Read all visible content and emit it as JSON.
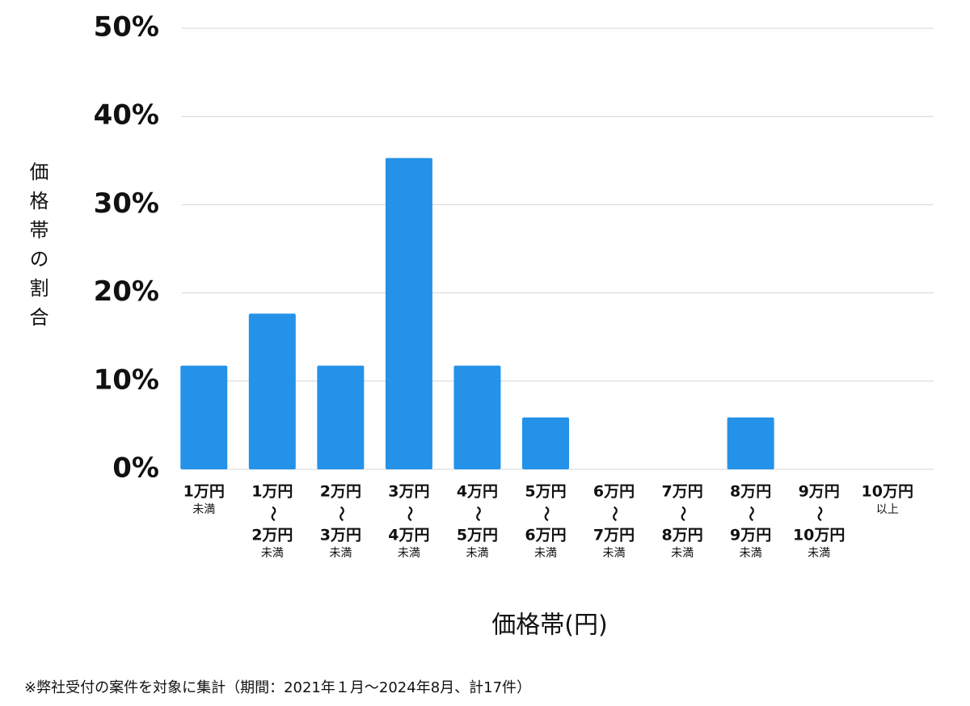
{
  "chart_data": {
    "type": "bar",
    "y_label": "価格帯の割合",
    "x_label": "価格帯(円)",
    "note": "※弊社受付の案件を対象に集計（期間：2021年１月〜2024年8月、計17件）",
    "categories": [
      [
        "1万円",
        "未満"
      ],
      [
        "1万円",
        "〜",
        "2万円",
        "未満"
      ],
      [
        "2万円",
        "〜",
        "3万円",
        "未満"
      ],
      [
        "3万円",
        "〜",
        "4万円",
        "未満"
      ],
      [
        "4万円",
        "〜",
        "5万円",
        "未満"
      ],
      [
        "5万円",
        "〜",
        "6万円",
        "未満"
      ],
      [
        "6万円",
        "〜",
        "7万円",
        "未満"
      ],
      [
        "7万円",
        "〜",
        "8万円",
        "未満"
      ],
      [
        "8万円",
        "〜",
        "9万円",
        "未満"
      ],
      [
        "9万円",
        "〜",
        "10万円",
        "未満"
      ],
      [
        "10万円",
        "以上"
      ]
    ],
    "values": [
      11.76,
      17.65,
      11.76,
      35.29,
      11.76,
      5.88,
      0,
      0,
      5.88,
      0,
      0
    ],
    "color": "#2492e8",
    "ylim": [
      0,
      50
    ],
    "yticks": [
      {
        "value": 0,
        "label": "0%"
      },
      {
        "value": 10,
        "label": "10%"
      },
      {
        "value": 20,
        "label": "20%"
      },
      {
        "value": 30,
        "label": "30%"
      },
      {
        "value": 40,
        "label": "40%"
      },
      {
        "value": 50,
        "label": "50%"
      }
    ],
    "grid": true
  }
}
